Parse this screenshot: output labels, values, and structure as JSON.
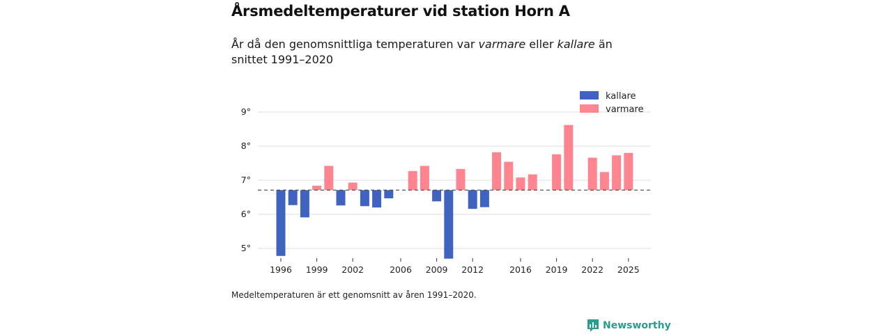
{
  "title": "Årsmedeltemperaturer vid station Horn A",
  "subtitle": {
    "before": "År då den genomsnittliga temperaturen var ",
    "warm_word": "varmare",
    "middle": " eller ",
    "cold_word": "kallare",
    "after": " än snittet 1991–2020"
  },
  "note": "Medeltemperaturen är ett genomsnitt av åren 1991–2020.",
  "brand": {
    "name": "Newsworthy",
    "icon": "newsworthy-logo-icon"
  },
  "colors": {
    "cold": "#3f63bf",
    "warm": "#fd8590",
    "grid": "#dcdcdc",
    "baseline": "#444444",
    "brand": "#2a9d8f"
  },
  "chart_data": {
    "type": "bar",
    "title": "Årsmedeltemperaturer vid station Horn A",
    "baseline": 6.71,
    "ylim": [
      4.78,
      9.3
    ],
    "yticks": [
      5,
      6,
      7,
      8,
      9
    ],
    "ytick_labels": [
      "5°",
      "6°",
      "7°",
      "8°",
      "9°"
    ],
    "xlim": [
      1994.5,
      2026
    ],
    "xticks": [
      1996,
      1999,
      2002,
      2006,
      2009,
      2012,
      2016,
      2019,
      2022,
      2025
    ],
    "xtick_labels": [
      "1996",
      "1999",
      "2002",
      "2006",
      "2009",
      "2012",
      "2016",
      "2019",
      "2022",
      "2025"
    ],
    "legend": [
      {
        "key": "cold",
        "label": "kallare"
      },
      {
        "key": "warm",
        "label": "varmare"
      }
    ],
    "legend_position": "top-right",
    "bars": [
      {
        "year": 1996,
        "value": 4.78
      },
      {
        "year": 1997,
        "value": 6.27
      },
      {
        "year": 1998,
        "value": 5.91
      },
      {
        "year": 1999,
        "value": 6.84
      },
      {
        "year": 2000,
        "value": 7.42
      },
      {
        "year": 2001,
        "value": 6.26
      },
      {
        "year": 2002,
        "value": 6.93
      },
      {
        "year": 2003,
        "value": 6.24
      },
      {
        "year": 2004,
        "value": 6.2
      },
      {
        "year": 2005,
        "value": 6.47
      },
      {
        "year": 2007,
        "value": 7.27
      },
      {
        "year": 2008,
        "value": 7.42
      },
      {
        "year": 2009,
        "value": 6.38
      },
      {
        "year": 2010,
        "value": 4.7
      },
      {
        "year": 2011,
        "value": 7.33
      },
      {
        "year": 2012,
        "value": 6.16
      },
      {
        "year": 2013,
        "value": 6.21
      },
      {
        "year": 2014,
        "value": 7.82
      },
      {
        "year": 2015,
        "value": 7.54
      },
      {
        "year": 2016,
        "value": 7.08
      },
      {
        "year": 2017,
        "value": 7.17
      },
      {
        "year": 2019,
        "value": 7.76
      },
      {
        "year": 2020,
        "value": 8.62
      },
      {
        "year": 2022,
        "value": 7.66
      },
      {
        "year": 2023,
        "value": 7.24
      },
      {
        "year": 2024,
        "value": 7.73
      },
      {
        "year": 2025,
        "value": 7.8
      }
    ]
  }
}
